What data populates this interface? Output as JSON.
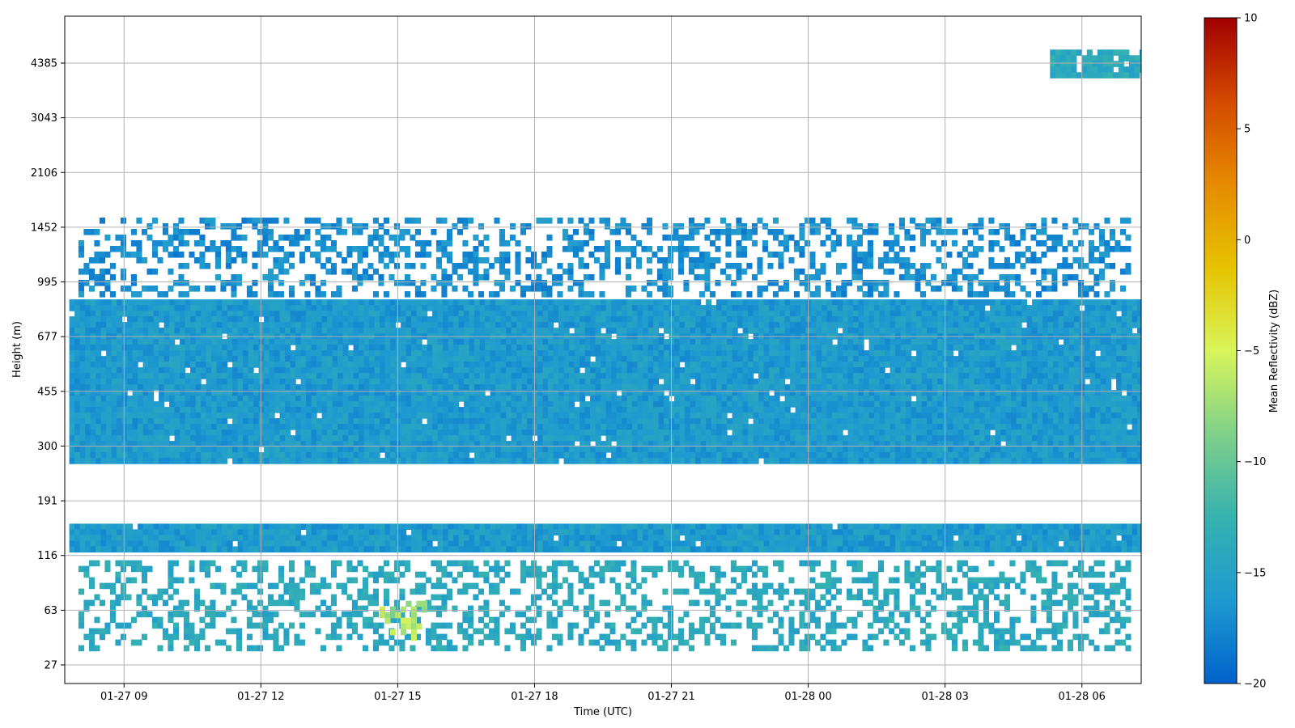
{
  "chart_data": {
    "type": "heatmap",
    "title": "",
    "xlabel": "Time (UTC)",
    "ylabel": "Height (m)",
    "x_ticks": [
      "01-27 09",
      "01-27 12",
      "01-27 15",
      "01-27 18",
      "01-27 21",
      "01-28 00",
      "01-28 03",
      "01-28 06"
    ],
    "x_tick_hours": [
      9,
      12,
      15,
      18,
      21,
      24,
      27,
      30
    ],
    "xlim_hours": [
      7.7,
      31.3
    ],
    "y_ticks": [
      "27",
      "63",
      "116",
      "191",
      "300",
      "455",
      "677",
      "995",
      "1452",
      "2106",
      "3043",
      "4385"
    ],
    "colorbar": {
      "label": "Mean Reflectivity (dBZ)",
      "range": [
        -20,
        10
      ],
      "ticks": [
        "10",
        "5",
        "0",
        "−5",
        "−10",
        "−15",
        "−20"
      ],
      "tick_values": [
        10,
        5,
        0,
        -5,
        -10,
        -15,
        -20
      ],
      "colormap": [
        "#0062cc",
        "#1f9ad0",
        "#36b2b0",
        "#7fd18a",
        "#d9f55a",
        "#e6c300",
        "#e68a00",
        "#d44a00",
        "#a00000"
      ]
    },
    "grid": true,
    "features": [
      {
        "label": "surface echoes",
        "height_m": [
          35,
          110
        ],
        "time_hours": [
          8.0,
          31.0
        ],
        "dbz": -14
      },
      {
        "label": "low cloud band",
        "height_m": [
          120,
          155
        ],
        "time_hours": [
          7.8,
          31.3
        ],
        "dbz": -16
      },
      {
        "label": "main cloud layer",
        "height_m": [
          270,
          880
        ],
        "time_hours": [
          7.8,
          31.3
        ],
        "dbz": -16
      },
      {
        "label": "cloud top fragments",
        "height_m": [
          900,
          1550
        ],
        "time_hours": [
          8.0,
          31.0
        ],
        "dbz": -17
      },
      {
        "label": "elevated layer",
        "height_m": [
          4000,
          4800
        ],
        "time_hours": [
          29.3,
          31.3
        ],
        "dbz": -14
      },
      {
        "label": "precipitation core",
        "height_m": [
          40,
          70
        ],
        "time_hours": [
          14.6,
          15.6
        ],
        "dbz": -8
      }
    ]
  }
}
